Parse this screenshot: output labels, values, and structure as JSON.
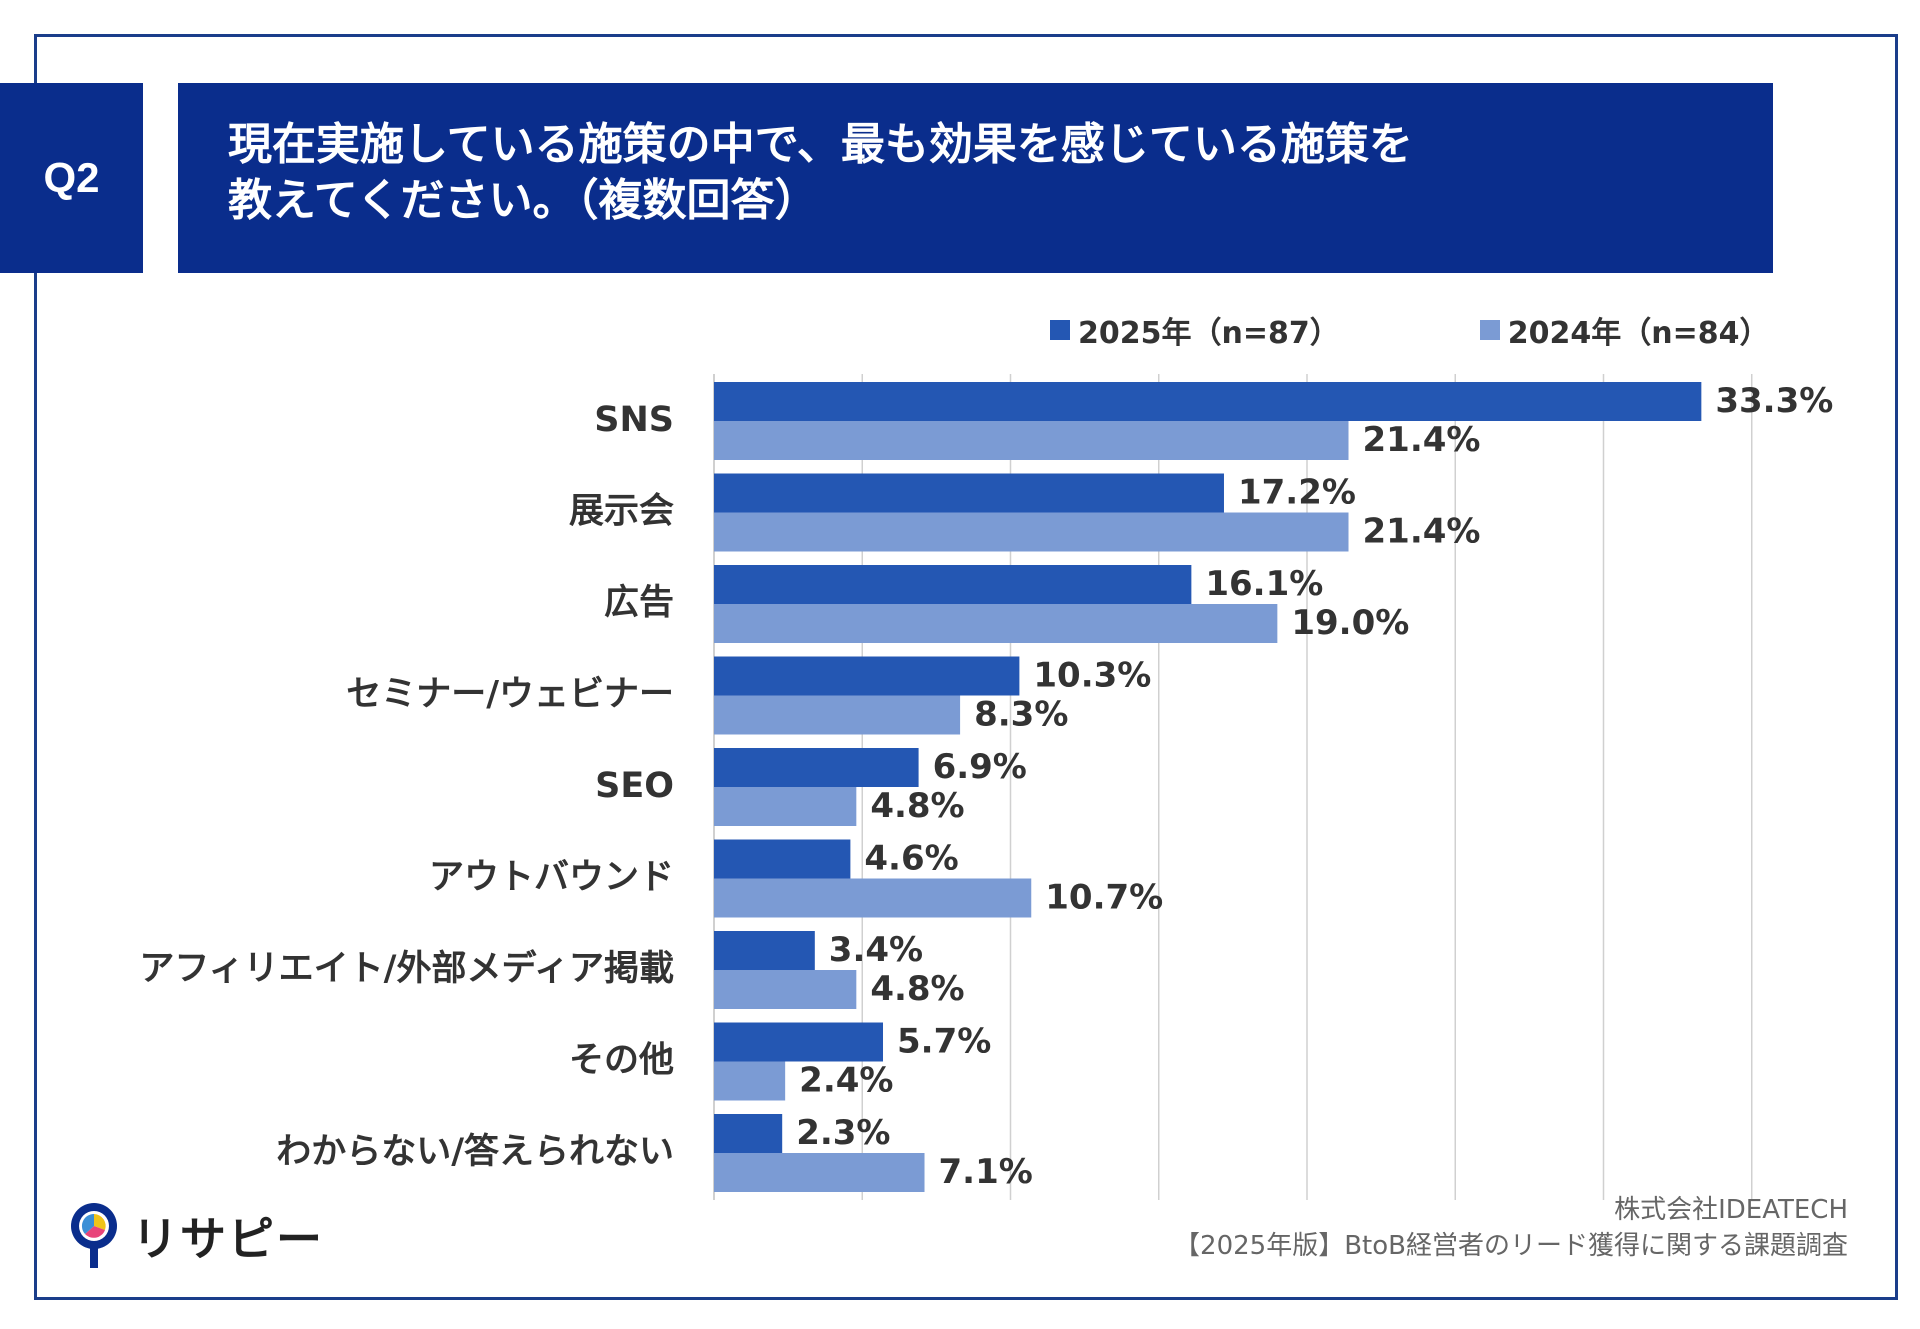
{
  "header": {
    "question_label": "Q2",
    "title_line1": "現在実施している施策の中で、最も効果を感じている施策を",
    "title_line2": "教えてください。（複数回答）"
  },
  "legend": {
    "series1_label": "2025年（n=87）",
    "series2_label": "2024年（n=84）"
  },
  "colors": {
    "series1": "#2457b3",
    "series2": "#7b9bd4",
    "header_bg": "#0a2d8c",
    "grid": "#d0d0d0"
  },
  "chart_data": {
    "type": "bar",
    "orientation": "horizontal",
    "categories": [
      "SNS",
      "展示会",
      "広告",
      "セミナー/ウェビナー",
      "SEO",
      "アウトバウンド",
      "アフィリエイト/外部メディア掲載",
      "その他",
      "わからない/答えられない"
    ],
    "series": [
      {
        "name": "2025年（n=87）",
        "values": [
          33.3,
          17.2,
          16.1,
          10.3,
          6.9,
          4.6,
          3.4,
          5.7,
          2.3
        ]
      },
      {
        "name": "2024年（n=84）",
        "values": [
          21.4,
          21.4,
          19.0,
          8.3,
          4.8,
          10.7,
          4.8,
          2.4,
          7.1
        ]
      }
    ],
    "value_suffix": "%",
    "xlim": [
      0,
      35
    ],
    "gridline_step": 5,
    "legend_position": "top-right"
  },
  "footer": {
    "company": "株式会社IDEATECH",
    "survey": "【2025年版】BtoB経営者のリード獲得に関する課題調査"
  },
  "logo": {
    "text": "リサピー"
  }
}
